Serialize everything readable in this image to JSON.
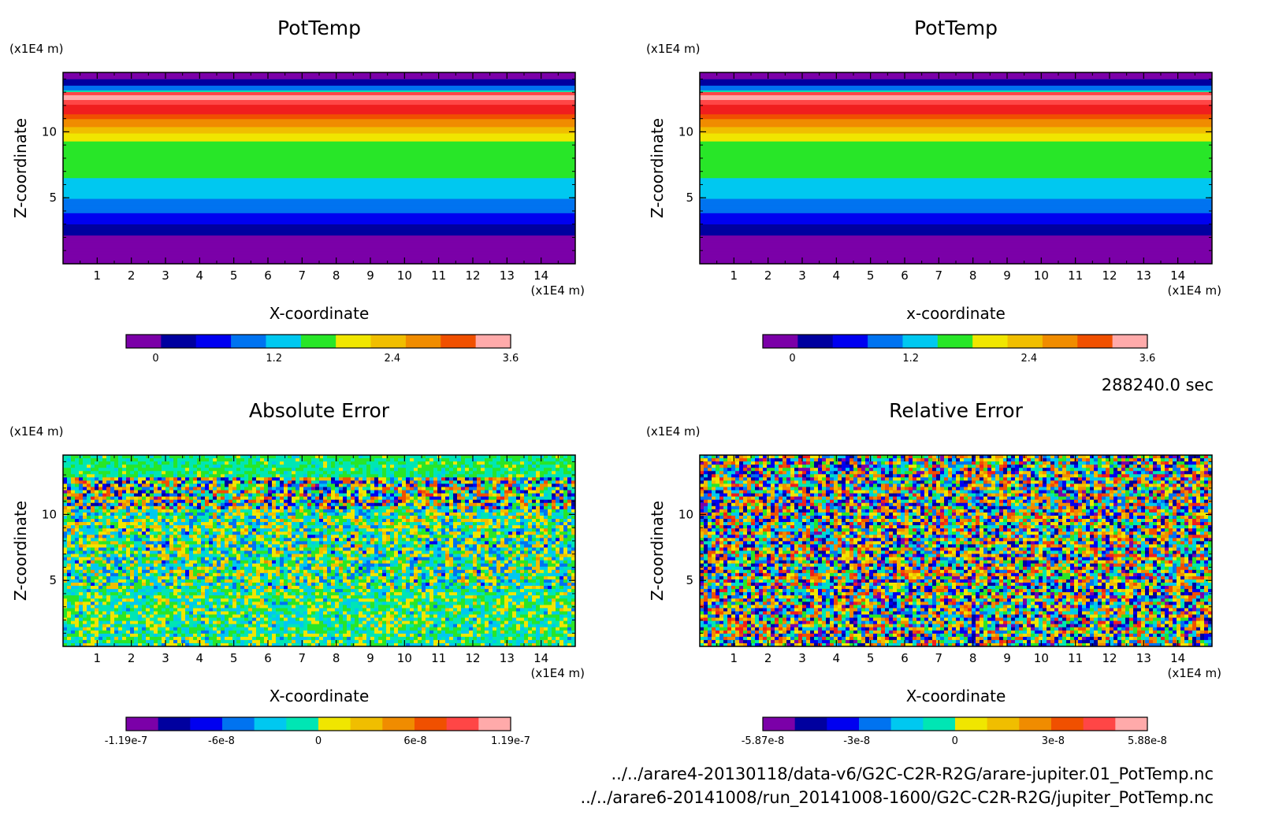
{
  "time_label": "288240.0 sec",
  "files": [
    "../../arare4-20130118/data-v6/G2C-C2R-R2G/arare-jupiter.01_PotTemp.nc",
    "../../arare6-20141008/run_20141008-1600/G2C-C2R-R2G/jupiter_PotTemp.nc"
  ],
  "colormap": [
    "#7b00a8",
    "#00009f",
    "#0000f0",
    "#0073f0",
    "#00c8f0",
    "#00e6b4",
    "#28e628",
    "#f0e600",
    "#f0be00",
    "#f08c00",
    "#f05000",
    "#f01e1e",
    "#ff4646",
    "#ffaaaa"
  ],
  "chart_data": [
    {
      "type": "heatmap",
      "pattern": "layered",
      "title": "PotTemp",
      "xlabel": "X-coordinate",
      "ylabel": "Z-coordinate",
      "xunit": "(x1E4 m)",
      "yunit": "(x1E4 m)",
      "xlim": [
        0,
        15
      ],
      "ylim": [
        0,
        14.5
      ],
      "xticks": [
        "1",
        "2",
        "3",
        "4",
        "5",
        "6",
        "7",
        "8",
        "9",
        "10",
        "11",
        "12",
        "13",
        "14"
      ],
      "yticks": [
        "5",
        "10"
      ],
      "colorbar": {
        "levels": 11,
        "labels": [
          "0",
          "1.2",
          "2.4",
          "3.6"
        ],
        "range": [
          -0.3,
          3.6
        ],
        "label_values": [
          0,
          1.2,
          2.4,
          3.6
        ]
      }
    },
    {
      "type": "heatmap",
      "pattern": "layered",
      "title": "PotTemp",
      "xlabel": "x-coordinate",
      "ylabel": "Z-coordinate",
      "xunit": "(x1E4 m)",
      "yunit": "(x1E4 m)",
      "xlim": [
        0,
        15
      ],
      "ylim": [
        0,
        14.5
      ],
      "xticks": [
        "1",
        "2",
        "3",
        "4",
        "5",
        "6",
        "7",
        "8",
        "9",
        "10",
        "11",
        "12",
        "13",
        "14"
      ],
      "yticks": [
        "5",
        "10"
      ],
      "colorbar": {
        "levels": 11,
        "labels": [
          "0",
          "1.2",
          "2.4",
          "3.6"
        ],
        "range": [
          -0.3,
          3.6
        ],
        "label_values": [
          0,
          1.2,
          2.4,
          3.6
        ]
      }
    },
    {
      "type": "heatmap",
      "pattern": "noise-abs",
      "title": "Absolute Error",
      "xlabel": "X-coordinate",
      "ylabel": "Z-coordinate",
      "xunit": "(x1E4 m)",
      "yunit": "(x1E4 m)",
      "xlim": [
        0,
        15
      ],
      "ylim": [
        0,
        14.5
      ],
      "xticks": [
        "1",
        "2",
        "3",
        "4",
        "5",
        "6",
        "7",
        "8",
        "9",
        "10",
        "11",
        "12",
        "13",
        "14"
      ],
      "yticks": [
        "5",
        "10"
      ],
      "colorbar": {
        "levels": 12,
        "labels": [
          "-1.19e-7",
          "-6e-8",
          "0",
          "6e-8",
          "1.19e-7"
        ],
        "range": [
          -1.19e-07,
          1.19e-07
        ],
        "label_values": [
          -1.19e-07,
          -6e-08,
          0,
          6e-08,
          1.19e-07
        ]
      }
    },
    {
      "type": "heatmap",
      "pattern": "noise-rel",
      "title": "Relative Error",
      "xlabel": "X-coordinate",
      "ylabel": "Z-coordinate",
      "xunit": "(x1E4 m)",
      "yunit": "(x1E4 m)",
      "xlim": [
        0,
        15
      ],
      "ylim": [
        0,
        14.5
      ],
      "xticks": [
        "1",
        "2",
        "3",
        "4",
        "5",
        "6",
        "7",
        "8",
        "9",
        "10",
        "11",
        "12",
        "13",
        "14"
      ],
      "yticks": [
        "5",
        "10"
      ],
      "colorbar": {
        "levels": 12,
        "labels": [
          "-5.87e-8",
          "-3e-8",
          "0",
          "3e-8",
          "5.88e-8"
        ],
        "range": [
          -5.87e-08,
          5.88e-08
        ],
        "label_values": [
          -5.87e-08,
          -3e-08,
          0,
          3e-08,
          5.88e-08
        ]
      }
    }
  ]
}
